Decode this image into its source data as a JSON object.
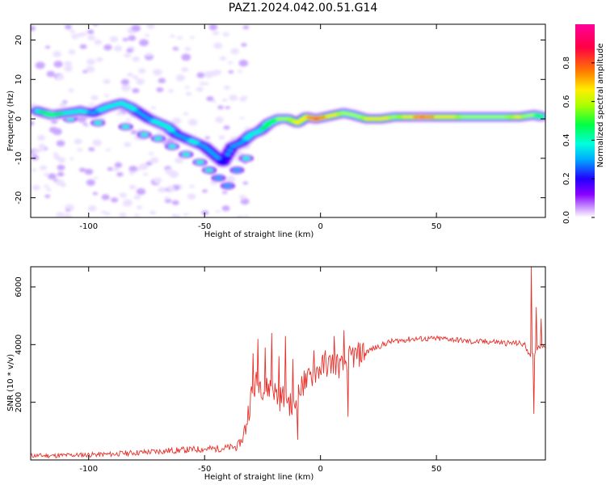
{
  "title": "PAZ1.2024.042.00.51.G14",
  "chart_data": [
    {
      "type": "heatmap",
      "title": "PAZ1.2024.042.00.51.G14",
      "xlabel": "Height of straight line (km)",
      "ylabel": "Frequency (Hz)",
      "xlim": [
        -125,
        97
      ],
      "ylim": [
        -25,
        24
      ],
      "xticks": [
        "-100",
        "-50",
        "0",
        "50"
      ],
      "yticks": [
        "-20",
        "-10",
        "0",
        "10",
        "20"
      ],
      "colorbar": {
        "label": "Normalized spectral amplitude",
        "range": [
          0.0,
          1.0
        ],
        "ticks": [
          "0.0",
          "0.2",
          "0.4",
          "0.6",
          "0.8"
        ],
        "colormap": [
          "#ffffff",
          "#cc99ff",
          "#8800ff",
          "#2200ff",
          "#00aaff",
          "#00ffdd",
          "#00ff44",
          "#aaff00",
          "#ffee00",
          "#ff7700",
          "#ff0044",
          "#ff0099"
        ]
      },
      "track": {
        "note_free": true,
        "points": [
          [
            -122,
            2,
            0.45
          ],
          [
            -116,
            1,
            0.5
          ],
          [
            -110,
            1.5,
            0.45
          ],
          [
            -104,
            2,
            0.4
          ],
          [
            -98,
            1.5,
            0.35
          ],
          [
            -92,
            3,
            0.4
          ],
          [
            -86,
            4,
            0.45
          ],
          [
            -82,
            3,
            0.4
          ],
          [
            -78,
            1.5,
            0.35
          ],
          [
            -74,
            0,
            0.35
          ],
          [
            -70,
            -1,
            0.4
          ],
          [
            -66,
            -2,
            0.4
          ],
          [
            -62,
            -4,
            0.35
          ],
          [
            -58,
            -5,
            0.35
          ],
          [
            -54,
            -6,
            0.4
          ],
          [
            -50,
            -7,
            0.3
          ],
          [
            -46,
            -9,
            0.3
          ],
          [
            -42,
            -11,
            0.25
          ],
          [
            -38,
            -7,
            0.3
          ],
          [
            -34,
            -6,
            0.35
          ],
          [
            -30,
            -4,
            0.4
          ],
          [
            -26,
            -3,
            0.45
          ],
          [
            -22,
            -1,
            0.5
          ],
          [
            -18,
            0,
            0.55
          ],
          [
            -14,
            0,
            0.6
          ],
          [
            -10,
            -1,
            0.65
          ],
          [
            -6,
            0.5,
            0.7
          ],
          [
            -2,
            0,
            0.85
          ],
          [
            2,
            0.5,
            0.75
          ],
          [
            6,
            1,
            0.65
          ],
          [
            10,
            1.5,
            0.6
          ],
          [
            14,
            1,
            0.55
          ],
          [
            20,
            0,
            0.65
          ],
          [
            26,
            0,
            0.7
          ],
          [
            32,
            0.5,
            0.6
          ],
          [
            38,
            0.5,
            0.65
          ],
          [
            44,
            0.5,
            0.85
          ],
          [
            50,
            0.5,
            0.7
          ],
          [
            56,
            0.5,
            0.65
          ],
          [
            62,
            0.5,
            0.6
          ],
          [
            68,
            0.5,
            0.55
          ],
          [
            74,
            0.5,
            0.55
          ],
          [
            80,
            0.5,
            0.6
          ],
          [
            86,
            0.5,
            0.65
          ],
          [
            92,
            1,
            0.55
          ],
          [
            96,
            0.5,
            0.5
          ]
        ],
        "secondary": [
          [
            -108,
            0,
            0.3
          ],
          [
            -96,
            -1,
            0.3
          ],
          [
            -84,
            -2,
            0.3
          ],
          [
            -76,
            -4,
            0.3
          ],
          [
            -70,
            -5,
            0.3
          ],
          [
            -64,
            -7,
            0.25
          ],
          [
            -58,
            -9,
            0.25
          ],
          [
            -52,
            -11,
            0.25
          ],
          [
            -48,
            -13,
            0.25
          ],
          [
            -44,
            -15,
            0.2
          ],
          [
            -40,
            -17,
            0.2
          ],
          [
            -36,
            -13,
            0.2
          ],
          [
            -32,
            -10,
            0.25
          ]
        ]
      }
    },
    {
      "type": "line",
      "xlabel": "Height of straight line (km)",
      "ylabel": "SNR (10 * v/v)",
      "xlim": [
        -125,
        97
      ],
      "ylim": [
        0,
        6700
      ],
      "xticks": [
        "-100",
        "-50",
        "0",
        "50"
      ],
      "yticks": [
        "2000",
        "4000",
        "6000"
      ],
      "color": "#e8302a",
      "series": [
        {
          "x": [
            -125,
            -120,
            -115,
            -110,
            -105,
            -100,
            -95,
            -90,
            -85,
            -80,
            -75,
            -70,
            -65,
            -60,
            -55,
            -50,
            -45,
            -40,
            -36,
            -33,
            -30,
            -27,
            -24,
            -21,
            -18,
            -15,
            -12,
            -9,
            -6,
            -3,
            0,
            3,
            6,
            9,
            12,
            15,
            18,
            21,
            24,
            27,
            30,
            35,
            40,
            45,
            50,
            55,
            60,
            65,
            70,
            75,
            80,
            85,
            88,
            90,
            92,
            94,
            97
          ],
          "y": [
            150,
            150,
            150,
            160,
            170,
            180,
            190,
            200,
            230,
            250,
            270,
            300,
            320,
            340,
            360,
            380,
            390,
            420,
            450,
            800,
            2200,
            2800,
            2400,
            2600,
            2100,
            2300,
            1700,
            2400,
            2700,
            3000,
            3200,
            3300,
            3400,
            3200,
            3500,
            3600,
            3700,
            3800,
            3900,
            4000,
            4100,
            4150,
            4200,
            4200,
            4200,
            4200,
            4150,
            4100,
            4100,
            4100,
            4050,
            4050,
            4000,
            3700,
            3600,
            3950,
            4000
          ],
          "spikes": [
            [
              -33,
              1100
            ],
            [
              -29,
              3700
            ],
            [
              -27,
              4200
            ],
            [
              -24,
              3900
            ],
            [
              -21,
              4400
            ],
            [
              -18,
              3600
            ],
            [
              -15,
              4300
            ],
            [
              -12,
              3500
            ],
            [
              -10,
              700
            ],
            [
              -7,
              3100
            ],
            [
              -3,
              3800
            ],
            [
              2,
              3800
            ],
            [
              6,
              4300
            ],
            [
              10,
              4500
            ],
            [
              12,
              1500
            ],
            [
              14,
              3900
            ],
            [
              18,
              4000
            ],
            [
              91,
              6700
            ],
            [
              92,
              1600
            ],
            [
              93,
              5300
            ],
            [
              95,
              4900
            ]
          ]
        }
      ]
    }
  ]
}
